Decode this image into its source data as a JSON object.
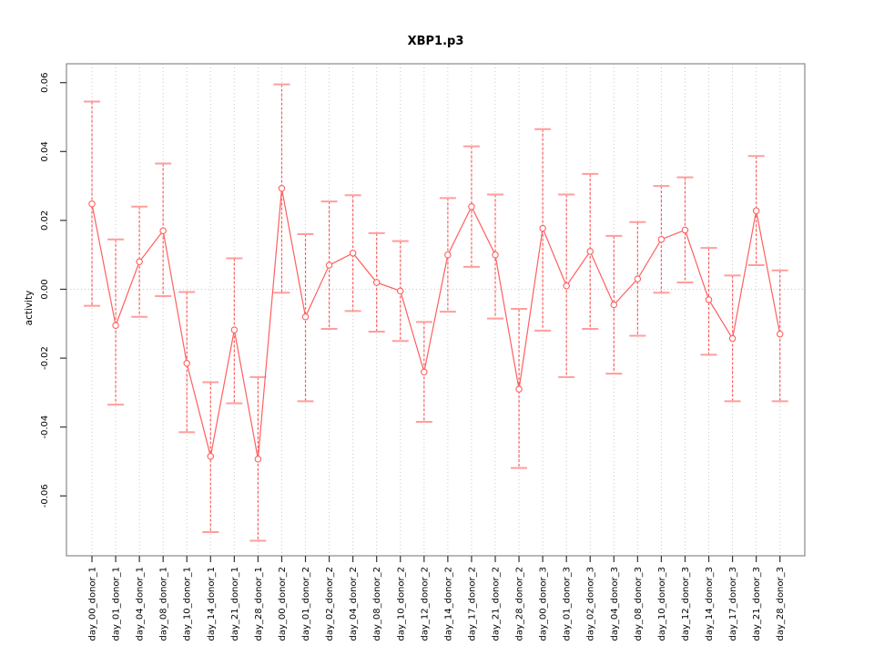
{
  "chart": {
    "title": "XBP1.p3",
    "ylabel": "activity"
  },
  "chart_data": {
    "type": "line",
    "subtype": "points-with-error-bars",
    "title": "XBP1.p3",
    "xlabel": "",
    "ylabel": "activity",
    "ylim": [
      -0.0775,
      0.0655
    ],
    "yticks": [
      0.06,
      0.04,
      0.02,
      0.0,
      -0.02,
      -0.04,
      -0.06
    ],
    "y_tick_labels": [
      "0.06",
      "0.04",
      "0.02",
      "0.00",
      "-0.02",
      "-0.04",
      "-0.06"
    ],
    "grid": "vertical dotted gridline at every category; horizontal dotted line at y=0",
    "legend_position": "none",
    "marker": "open-circle",
    "error_bar_style": "dashed vertical line with horizontal caps",
    "categories": [
      "day_00_donor_1",
      "day_01_donor_1",
      "day_04_donor_1",
      "day_08_donor_1",
      "day_10_donor_1",
      "day_14_donor_1",
      "day_21_donor_1",
      "day_28_donor_1",
      "day_00_donor_2",
      "day_01_donor_2",
      "day_02_donor_2",
      "day_04_donor_2",
      "day_08_donor_2",
      "day_10_donor_2",
      "day_12_donor_2",
      "day_14_donor_2",
      "day_17_donor_2",
      "day_21_donor_2",
      "day_28_donor_2",
      "day_00_donor_3",
      "day_01_donor_3",
      "day_02_donor_3",
      "day_04_donor_3",
      "day_08_donor_3",
      "day_10_donor_3",
      "day_12_donor_3",
      "day_14_donor_3",
      "day_17_donor_3",
      "day_21_donor_3",
      "day_28_donor_3"
    ],
    "series": [
      {
        "name": "activity",
        "values": [
          0.0248,
          -0.0105,
          0.008,
          0.017,
          -0.0215,
          -0.0485,
          -0.0118,
          -0.0493,
          0.0293,
          -0.008,
          0.007,
          0.0105,
          0.002,
          -0.0005,
          -0.024,
          0.01,
          0.024,
          0.01,
          -0.029,
          0.0177,
          0.001,
          0.011,
          -0.0045,
          0.003,
          0.0145,
          0.0172,
          -0.003,
          -0.0143,
          0.0228,
          -0.013
        ],
        "error_low": [
          -0.0048,
          -0.0335,
          -0.008,
          -0.002,
          -0.0415,
          -0.0705,
          -0.0331,
          -0.073,
          -0.001,
          -0.0325,
          -0.0115,
          -0.0063,
          -0.0123,
          -0.015,
          -0.0385,
          -0.0065,
          0.0065,
          -0.0085,
          -0.0519,
          -0.012,
          -0.0255,
          -0.0115,
          -0.0245,
          -0.0135,
          -0.001,
          0.002,
          -0.019,
          -0.0325,
          0.007,
          -0.0325
        ],
        "error_high": [
          0.0545,
          0.0145,
          0.024,
          0.0365,
          -0.0008,
          -0.027,
          0.009,
          -0.0255,
          0.0595,
          0.016,
          0.0255,
          0.0273,
          0.0163,
          0.014,
          -0.0095,
          0.0265,
          0.0415,
          0.0275,
          -0.0057,
          0.0465,
          0.0275,
          0.0335,
          0.0155,
          0.0195,
          0.03,
          0.0325,
          0.012,
          0.004,
          0.0387,
          0.0055
        ]
      }
    ],
    "colors": {
      "series": "#ff5f5f",
      "caps": "#ff9d9d",
      "grid": "#c9c9c9",
      "box": "#888888",
      "tick": "#333333",
      "text": "#000000",
      "marker_fill": "#ffffff"
    }
  }
}
